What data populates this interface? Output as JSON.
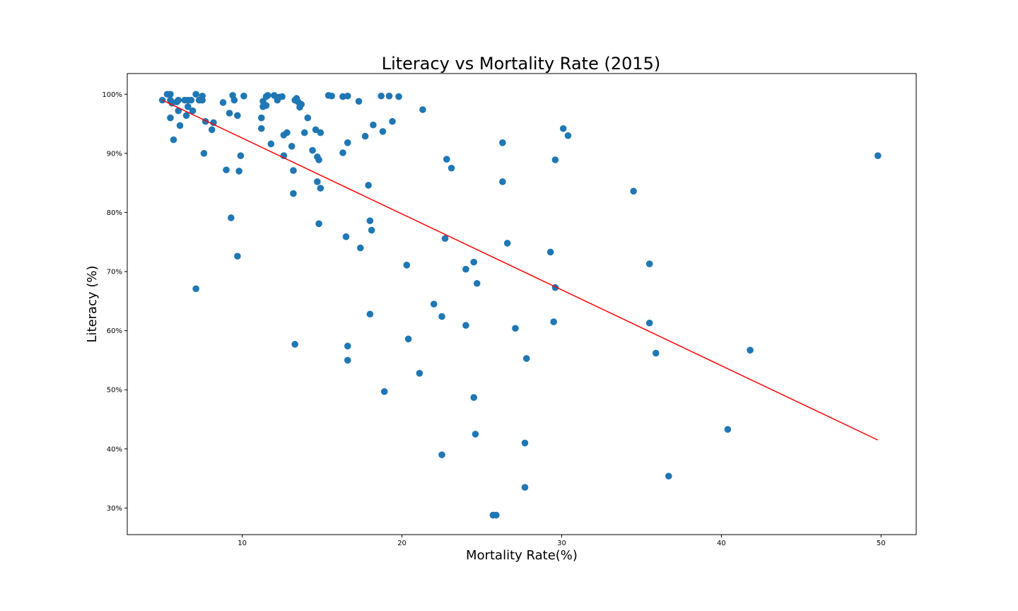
{
  "chart_data": {
    "type": "scatter",
    "title": "Literacy vs Mortality Rate (2015)",
    "xlabel": "Mortality Rate(%)",
    "ylabel": "Literacy (%)",
    "xlim": [
      2.8,
      52.2
    ],
    "ylim": [
      25.5,
      103.5
    ],
    "x_ticks": [
      10,
      20,
      30,
      40,
      50
    ],
    "x_tick_labels": [
      "10",
      "20",
      "30",
      "40",
      "50"
    ],
    "y_ticks": [
      30,
      40,
      50,
      60,
      70,
      80,
      90,
      100
    ],
    "y_tick_labels": [
      "30%",
      "40%",
      "50%",
      "60%",
      "70%",
      "80%",
      "90%",
      "100%"
    ],
    "grid": false,
    "legend": "none",
    "colors": {
      "points": "#1f77b4",
      "trendline": "#ff0000"
    },
    "series": [
      {
        "type": "scatter",
        "points": [
          [
            5.0,
            99.0
          ],
          [
            5.3,
            100.0
          ],
          [
            5.5,
            100.0
          ],
          [
            5.5,
            99.0
          ],
          [
            5.6,
            98.5
          ],
          [
            5.5,
            96.0
          ],
          [
            5.7,
            92.3
          ],
          [
            5.9,
            98.7
          ],
          [
            6.0,
            99.0
          ],
          [
            6.0,
            97.2
          ],
          [
            6.1,
            94.7
          ],
          [
            6.4,
            99.0
          ],
          [
            6.5,
            96.4
          ],
          [
            6.6,
            99.0
          ],
          [
            6.6,
            97.9
          ],
          [
            6.8,
            99.0
          ],
          [
            6.9,
            97.2
          ],
          [
            7.1,
            100.0
          ],
          [
            7.3,
            99.0
          ],
          [
            7.5,
            99.0
          ],
          [
            7.5,
            99.7
          ],
          [
            7.6,
            90.0
          ],
          [
            7.7,
            95.4
          ],
          [
            8.1,
            94.0
          ],
          [
            8.2,
            95.2
          ],
          [
            7.1,
            67.1
          ],
          [
            8.8,
            98.6
          ],
          [
            9.0,
            87.2
          ],
          [
            9.2,
            96.8
          ],
          [
            9.4,
            99.8
          ],
          [
            9.5,
            99.0
          ],
          [
            9.7,
            96.4
          ],
          [
            9.8,
            87.0
          ],
          [
            9.9,
            89.6
          ],
          [
            9.3,
            79.1
          ],
          [
            9.7,
            72.6
          ],
          [
            10.1,
            99.7
          ],
          [
            11.2,
            96.0
          ],
          [
            11.2,
            94.2
          ],
          [
            11.3,
            98.8
          ],
          [
            11.3,
            97.9
          ],
          [
            11.5,
            98.1
          ],
          [
            11.5,
            99.6
          ],
          [
            11.6,
            99.8
          ],
          [
            11.8,
            91.6
          ],
          [
            12.0,
            99.8
          ],
          [
            12.2,
            99.0
          ],
          [
            12.3,
            99.5
          ],
          [
            12.5,
            99.6
          ],
          [
            12.6,
            89.6
          ],
          [
            12.6,
            93.1
          ],
          [
            12.8,
            93.5
          ],
          [
            13.1,
            91.2
          ],
          [
            13.2,
            83.2
          ],
          [
            13.2,
            87.1
          ],
          [
            13.3,
            99.0
          ],
          [
            13.4,
            99.3
          ],
          [
            13.5,
            98.7
          ],
          [
            13.6,
            97.8
          ],
          [
            13.7,
            98.3
          ],
          [
            13.3,
            57.7
          ],
          [
            13.9,
            93.5
          ],
          [
            14.1,
            96.0
          ],
          [
            14.4,
            90.5
          ],
          [
            14.6,
            94.0
          ],
          [
            14.7,
            85.2
          ],
          [
            14.7,
            89.4
          ],
          [
            14.8,
            88.9
          ],
          [
            14.9,
            93.5
          ],
          [
            14.9,
            84.1
          ],
          [
            14.8,
            78.1
          ],
          [
            15.4,
            99.8
          ],
          [
            15.6,
            99.7
          ],
          [
            16.3,
            99.6
          ],
          [
            16.3,
            90.1
          ],
          [
            16.5,
            75.9
          ],
          [
            16.6,
            91.8
          ],
          [
            16.6,
            99.7
          ],
          [
            16.6,
            57.4
          ],
          [
            16.6,
            55.0
          ],
          [
            17.3,
            98.8
          ],
          [
            17.4,
            74.0
          ],
          [
            17.7,
            92.9
          ],
          [
            17.9,
            84.6
          ],
          [
            18.0,
            78.6
          ],
          [
            18.1,
            77.0
          ],
          [
            18.0,
            62.8
          ],
          [
            18.2,
            94.8
          ],
          [
            18.7,
            99.7
          ],
          [
            18.8,
            93.7
          ],
          [
            18.9,
            49.7
          ],
          [
            19.2,
            99.7
          ],
          [
            19.4,
            95.4
          ],
          [
            19.8,
            99.6
          ],
          [
            20.3,
            71.1
          ],
          [
            20.4,
            58.6
          ],
          [
            21.1,
            52.8
          ],
          [
            21.3,
            97.4
          ],
          [
            22.0,
            64.5
          ],
          [
            22.5,
            62.4
          ],
          [
            22.5,
            39.0
          ],
          [
            22.7,
            75.6
          ],
          [
            22.8,
            89.0
          ],
          [
            23.1,
            87.5
          ],
          [
            24.0,
            70.4
          ],
          [
            24.0,
            60.9
          ],
          [
            24.5,
            71.6
          ],
          [
            24.5,
            48.7
          ],
          [
            24.6,
            42.5
          ],
          [
            24.7,
            68.0
          ],
          [
            25.7,
            28.8
          ],
          [
            25.9,
            28.8
          ],
          [
            26.3,
            91.8
          ],
          [
            26.3,
            85.2
          ],
          [
            26.6,
            74.8
          ],
          [
            27.1,
            60.4
          ],
          [
            27.7,
            41.0
          ],
          [
            27.8,
            55.3
          ],
          [
            27.7,
            33.5
          ],
          [
            29.3,
            73.3
          ],
          [
            29.5,
            61.5
          ],
          [
            29.6,
            88.9
          ],
          [
            29.6,
            67.3
          ],
          [
            30.1,
            94.2
          ],
          [
            30.4,
            93.0
          ],
          [
            34.5,
            83.6
          ],
          [
            35.5,
            71.3
          ],
          [
            35.5,
            61.3
          ],
          [
            35.9,
            56.2
          ],
          [
            36.7,
            35.4
          ],
          [
            40.4,
            43.3
          ],
          [
            41.8,
            56.7
          ],
          [
            49.8,
            89.6
          ]
        ]
      },
      {
        "type": "line",
        "points": [
          [
            5.0,
            99.0
          ],
          [
            49.8,
            41.5
          ]
        ]
      }
    ]
  }
}
